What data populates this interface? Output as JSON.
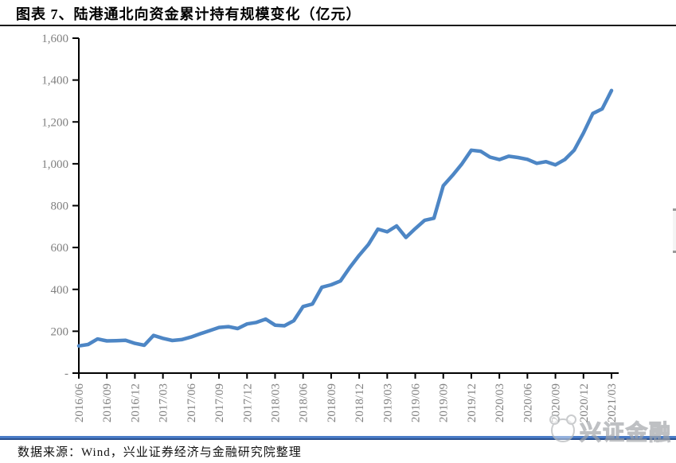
{
  "header": {
    "title": "图表 7、陆港通北向资金累计持有规模变化（亿元）"
  },
  "footer": {
    "source": "数据来源：Wind，兴业证券经济与金融研究院整理",
    "watermark_text": "兴证金融",
    "watermark_logo": "panda-badge-icon"
  },
  "colors": {
    "line": "#4d86c5",
    "axis": "#000000",
    "tick_label": "#808080",
    "title_rule": "#1a1a1a",
    "separator_top": "#4a7cc7",
    "separator_bottom": "#2b5291",
    "watermark": "#b9bcbe"
  },
  "chart_data": {
    "type": "line",
    "title": "陆港通北向资金累计持有规模变化（亿元）",
    "xlabel": "",
    "ylabel": "",
    "ylim": [
      0,
      1600
    ],
    "ytick_step": 200,
    "ytick_labels": [
      "1,600",
      "1,400",
      "1,200",
      "1,000",
      "800",
      "600",
      "400",
      "200",
      "-"
    ],
    "grid": false,
    "legend": "none",
    "xtick_every": 3,
    "xtick_labels": [
      "2016/06",
      "2016/09",
      "2016/12",
      "2017/03",
      "2017/06",
      "2017/09",
      "2017/12",
      "2018/03",
      "2018/06",
      "2018/09",
      "2018/12",
      "2019/03",
      "2019/06",
      "2019/09",
      "2019/12",
      "2020/03",
      "2020/06",
      "2020/09",
      "2020/12",
      "2021/03"
    ],
    "x": [
      "2016/06",
      "2016/07",
      "2016/08",
      "2016/09",
      "2016/10",
      "2016/11",
      "2016/12",
      "2017/01",
      "2017/02",
      "2017/03",
      "2017/04",
      "2017/05",
      "2017/06",
      "2017/07",
      "2017/08",
      "2017/09",
      "2017/10",
      "2017/11",
      "2017/12",
      "2018/01",
      "2018/02",
      "2018/03",
      "2018/04",
      "2018/05",
      "2018/06",
      "2018/07",
      "2018/08",
      "2018/09",
      "2018/10",
      "2018/11",
      "2018/12",
      "2019/01",
      "2019/02",
      "2019/03",
      "2019/04",
      "2019/05",
      "2019/06",
      "2019/07",
      "2019/08",
      "2019/09",
      "2019/10",
      "2019/11",
      "2019/12",
      "2020/01",
      "2020/02",
      "2020/03",
      "2020/04",
      "2020/05",
      "2020/06",
      "2020/07",
      "2020/08",
      "2020/09",
      "2020/10",
      "2020/11",
      "2020/12",
      "2021/01",
      "2021/02",
      "2021/03"
    ],
    "series": [
      {
        "name": "陆港通北向资金累计持有规模",
        "values": [
          130,
          137,
          163,
          154,
          155,
          157,
          142,
          133,
          180,
          166,
          156,
          160,
          172,
          188,
          203,
          218,
          222,
          213,
          235,
          242,
          258,
          229,
          226,
          250,
          318,
          330,
          410,
          422,
          440,
          505,
          563,
          615,
          688,
          675,
          703,
          648,
          690,
          730,
          740,
          895,
          945,
          1000,
          1065,
          1060,
          1032,
          1020,
          1036,
          1030,
          1021,
          1002,
          1010,
          995,
          1020,
          1065,
          1147,
          1240,
          1262,
          1350
        ]
      }
    ]
  }
}
